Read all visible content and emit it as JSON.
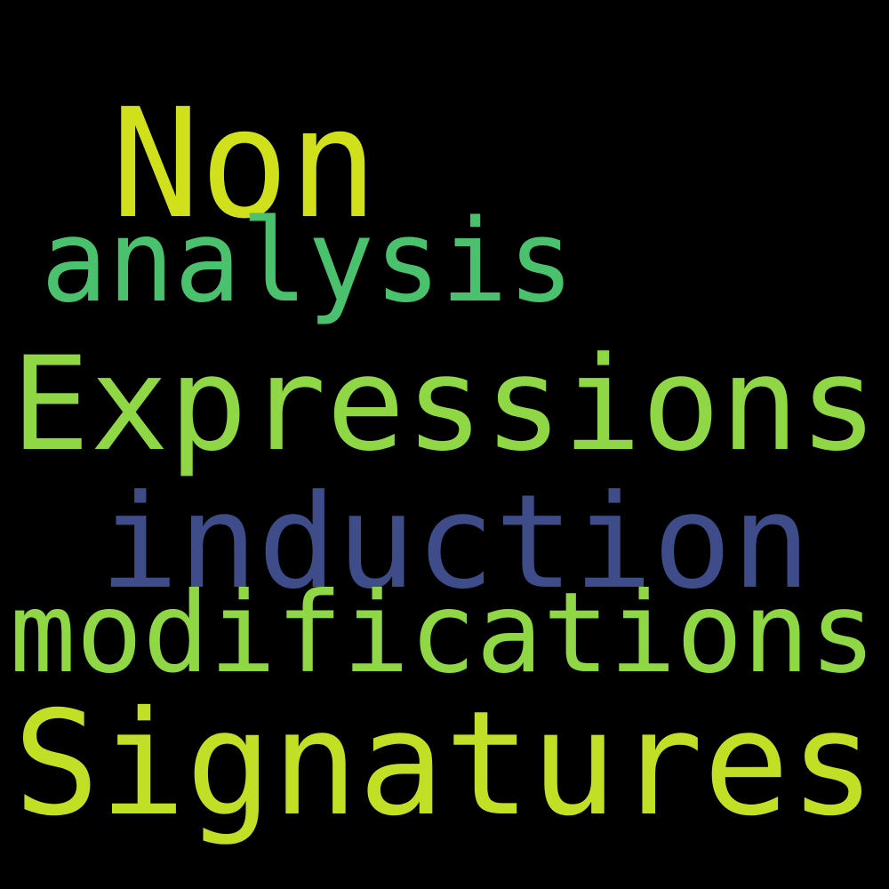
{
  "words": [
    {
      "text": "Non"
    },
    {
      "text": "analysis"
    },
    {
      "text": "Expressions"
    },
    {
      "text": "induction"
    },
    {
      "text": "modifications"
    },
    {
      "text": "Signatures"
    }
  ]
}
